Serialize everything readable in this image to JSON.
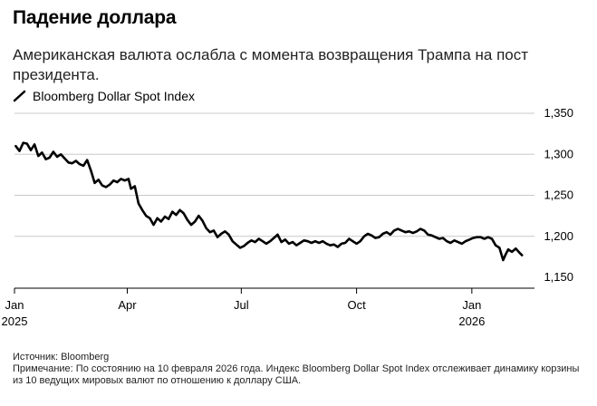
{
  "header": {
    "title": "Падение доллара",
    "subtitle": "Американская валюта ослабла с момента возвращения Трампа на пост президента."
  },
  "footer": {
    "source": "Источник: Bloomberg",
    "note": "Примечание: По состоянию на 10 февраля 2026 года. Индекс Bloomberg Dollar Spot Index отслеживает динамику корзины из 10 ведущих мировых валют по отношению к доллару США."
  },
  "colors": {
    "line": "#000000",
    "grid": "#c8c8c8",
    "axis": "#000000"
  },
  "chart_data": {
    "type": "line",
    "title": "Падение доллара",
    "subtitle": "Американская валюта ослабла с момента возвращения Трампа на пост президента.",
    "xlabel": "",
    "ylabel": "",
    "ylim": [
      1150,
      1350
    ],
    "yticks": [
      {
        "value": 1150,
        "label": "1,150"
      },
      {
        "value": 1200,
        "label": "1,200"
      },
      {
        "value": 1250,
        "label": "1,250"
      },
      {
        "value": 1300,
        "label": "1,300"
      },
      {
        "value": 1350,
        "label": "1,350"
      }
    ],
    "xlim": [
      "2025-01-01",
      "2026-02-20"
    ],
    "xticks": [
      {
        "date": "2025-01-01",
        "label": "Jan",
        "year": "2025"
      },
      {
        "date": "2025-04-01",
        "label": "Apr",
        "year": ""
      },
      {
        "date": "2025-07-01",
        "label": "Jul",
        "year": ""
      },
      {
        "date": "2025-10-01",
        "label": "Oct",
        "year": ""
      },
      {
        "date": "2026-01-01",
        "label": "Jan",
        "year": "2026"
      }
    ],
    "grid": true,
    "legend": "top-left",
    "series": [
      {
        "name": "Bloomberg Dollar Spot Index",
        "points": [
          [
            "2025-01-02",
            1310
          ],
          [
            "2025-01-05",
            1304
          ],
          [
            "2025-01-08",
            1314
          ],
          [
            "2025-01-11",
            1313
          ],
          [
            "2025-01-14",
            1305
          ],
          [
            "2025-01-17",
            1312
          ],
          [
            "2025-01-20",
            1298
          ],
          [
            "2025-01-23",
            1302
          ],
          [
            "2025-01-26",
            1294
          ],
          [
            "2025-01-29",
            1296
          ],
          [
            "2025-02-01",
            1303
          ],
          [
            "2025-02-04",
            1297
          ],
          [
            "2025-02-07",
            1300
          ],
          [
            "2025-02-10",
            1295
          ],
          [
            "2025-02-13",
            1290
          ],
          [
            "2025-02-16",
            1289
          ],
          [
            "2025-02-19",
            1292
          ],
          [
            "2025-02-22",
            1288
          ],
          [
            "2025-02-25",
            1286
          ],
          [
            "2025-02-28",
            1293
          ],
          [
            "2025-03-03",
            1280
          ],
          [
            "2025-03-06",
            1265
          ],
          [
            "2025-03-09",
            1269
          ],
          [
            "2025-03-12",
            1262
          ],
          [
            "2025-03-15",
            1260
          ],
          [
            "2025-03-18",
            1263
          ],
          [
            "2025-03-21",
            1268
          ],
          [
            "2025-03-24",
            1266
          ],
          [
            "2025-03-27",
            1270
          ],
          [
            "2025-03-30",
            1268
          ],
          [
            "2025-04-02",
            1270
          ],
          [
            "2025-04-04",
            1258
          ],
          [
            "2025-04-07",
            1261
          ],
          [
            "2025-04-10",
            1240
          ],
          [
            "2025-04-13",
            1232
          ],
          [
            "2025-04-16",
            1225
          ],
          [
            "2025-04-19",
            1222
          ],
          [
            "2025-04-22",
            1214
          ],
          [
            "2025-04-25",
            1222
          ],
          [
            "2025-04-28",
            1218
          ],
          [
            "2025-05-01",
            1224
          ],
          [
            "2025-05-04",
            1221
          ],
          [
            "2025-05-07",
            1230
          ],
          [
            "2025-05-10",
            1226
          ],
          [
            "2025-05-13",
            1232
          ],
          [
            "2025-05-16",
            1228
          ],
          [
            "2025-05-19",
            1220
          ],
          [
            "2025-05-22",
            1214
          ],
          [
            "2025-05-25",
            1218
          ],
          [
            "2025-05-28",
            1225
          ],
          [
            "2025-05-31",
            1219
          ],
          [
            "2025-06-03",
            1210
          ],
          [
            "2025-06-06",
            1205
          ],
          [
            "2025-06-09",
            1207
          ],
          [
            "2025-06-12",
            1199
          ],
          [
            "2025-06-15",
            1203
          ],
          [
            "2025-06-18",
            1206
          ],
          [
            "2025-06-21",
            1202
          ],
          [
            "2025-06-24",
            1194
          ],
          [
            "2025-06-27",
            1190
          ],
          [
            "2025-06-30",
            1186
          ],
          [
            "2025-07-03",
            1188
          ],
          [
            "2025-07-06",
            1192
          ],
          [
            "2025-07-09",
            1195
          ],
          [
            "2025-07-12",
            1193
          ],
          [
            "2025-07-15",
            1197
          ],
          [
            "2025-07-18",
            1194
          ],
          [
            "2025-07-21",
            1191
          ],
          [
            "2025-07-24",
            1194
          ],
          [
            "2025-07-27",
            1198
          ],
          [
            "2025-07-30",
            1202
          ],
          [
            "2025-08-02",
            1193
          ],
          [
            "2025-08-05",
            1196
          ],
          [
            "2025-08-08",
            1191
          ],
          [
            "2025-08-11",
            1193
          ],
          [
            "2025-08-14",
            1189
          ],
          [
            "2025-08-17",
            1192
          ],
          [
            "2025-08-20",
            1195
          ],
          [
            "2025-08-23",
            1194
          ],
          [
            "2025-08-26",
            1192
          ],
          [
            "2025-08-29",
            1194
          ],
          [
            "2025-09-01",
            1192
          ],
          [
            "2025-09-04",
            1194
          ],
          [
            "2025-09-07",
            1191
          ],
          [
            "2025-09-10",
            1189
          ],
          [
            "2025-09-13",
            1190
          ],
          [
            "2025-09-16",
            1187
          ],
          [
            "2025-09-19",
            1191
          ],
          [
            "2025-09-22",
            1192
          ],
          [
            "2025-09-25",
            1197
          ],
          [
            "2025-09-28",
            1194
          ],
          [
            "2025-10-01",
            1191
          ],
          [
            "2025-10-04",
            1194
          ],
          [
            "2025-10-07",
            1200
          ],
          [
            "2025-10-10",
            1203
          ],
          [
            "2025-10-13",
            1201
          ],
          [
            "2025-10-16",
            1198
          ],
          [
            "2025-10-19",
            1199
          ],
          [
            "2025-10-22",
            1203
          ],
          [
            "2025-10-25",
            1205
          ],
          [
            "2025-10-28",
            1202
          ],
          [
            "2025-10-31",
            1207
          ],
          [
            "2025-11-03",
            1209
          ],
          [
            "2025-11-06",
            1207
          ],
          [
            "2025-11-09",
            1205
          ],
          [
            "2025-11-12",
            1206
          ],
          [
            "2025-11-15",
            1204
          ],
          [
            "2025-11-18",
            1206
          ],
          [
            "2025-11-21",
            1209
          ],
          [
            "2025-11-24",
            1207
          ],
          [
            "2025-11-27",
            1202
          ],
          [
            "2025-11-30",
            1201
          ],
          [
            "2025-12-03",
            1199
          ],
          [
            "2025-12-06",
            1197
          ],
          [
            "2025-12-09",
            1198
          ],
          [
            "2025-12-12",
            1194
          ],
          [
            "2025-12-15",
            1192
          ],
          [
            "2025-12-18",
            1195
          ],
          [
            "2025-12-21",
            1193
          ],
          [
            "2025-12-24",
            1191
          ],
          [
            "2025-12-27",
            1194
          ],
          [
            "2025-12-30",
            1196
          ],
          [
            "2026-01-02",
            1198
          ],
          [
            "2026-01-05",
            1199
          ],
          [
            "2026-01-08",
            1199
          ],
          [
            "2026-01-11",
            1197
          ],
          [
            "2026-01-14",
            1199
          ],
          [
            "2026-01-17",
            1197
          ],
          [
            "2026-01-20",
            1189
          ],
          [
            "2026-01-23",
            1186
          ],
          [
            "2026-01-26",
            1171
          ],
          [
            "2026-01-28",
            1178
          ],
          [
            "2026-01-30",
            1184
          ],
          [
            "2026-02-02",
            1181
          ],
          [
            "2026-02-05",
            1185
          ],
          [
            "2026-02-08",
            1180
          ],
          [
            "2026-02-10",
            1177
          ]
        ]
      }
    ]
  }
}
